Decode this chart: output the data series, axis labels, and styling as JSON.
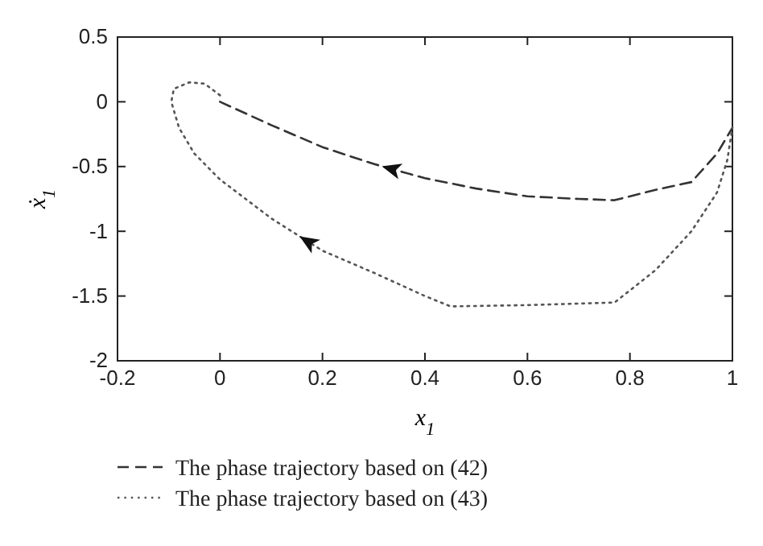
{
  "chart_data": {
    "type": "line",
    "xlabel": "x$_{1}$",
    "ylabel": "ẋ$_{1}$",
    "xlim": [
      -0.2,
      1
    ],
    "ylim": [
      -2,
      0.5
    ],
    "xticks": [
      -0.2,
      0,
      0.2,
      0.4,
      0.6,
      0.8,
      1
    ],
    "yticks": [
      -2,
      -1.5,
      -1,
      -0.5,
      0,
      0.5
    ],
    "grid": false,
    "legend": "bottom",
    "series": [
      {
        "name": "The phase trajectory based on (42)",
        "color": "#333333",
        "line_style": "dashed",
        "x": [
          0,
          0.1,
          0.2,
          0.3,
          0.4,
          0.5,
          0.6,
          0.7,
          0.77,
          0.85,
          0.92,
          0.97,
          1.0
        ],
        "values": [
          0,
          -0.18,
          -0.35,
          -0.48,
          -0.59,
          -0.67,
          -0.73,
          -0.75,
          -0.76,
          -0.68,
          -0.62,
          -0.4,
          -0.2
        ]
      },
      {
        "name": "The phase trajectory based on (43)",
        "color": "#555555",
        "line_style": "dotted",
        "x": [
          0,
          -0.03,
          -0.06,
          -0.09,
          -0.095,
          -0.08,
          -0.05,
          0,
          0.1,
          0.2,
          0.3,
          0.4,
          0.45,
          0.6,
          0.77,
          0.85,
          0.92,
          0.97,
          0.99,
          1.0
        ],
        "values": [
          0.05,
          0.14,
          0.15,
          0.1,
          0,
          -0.2,
          -0.4,
          -0.6,
          -0.9,
          -1.15,
          -1.32,
          -1.5,
          -1.58,
          -1.57,
          -1.55,
          -1.3,
          -1,
          -0.7,
          -0.45,
          -0.2
        ]
      }
    ]
  }
}
